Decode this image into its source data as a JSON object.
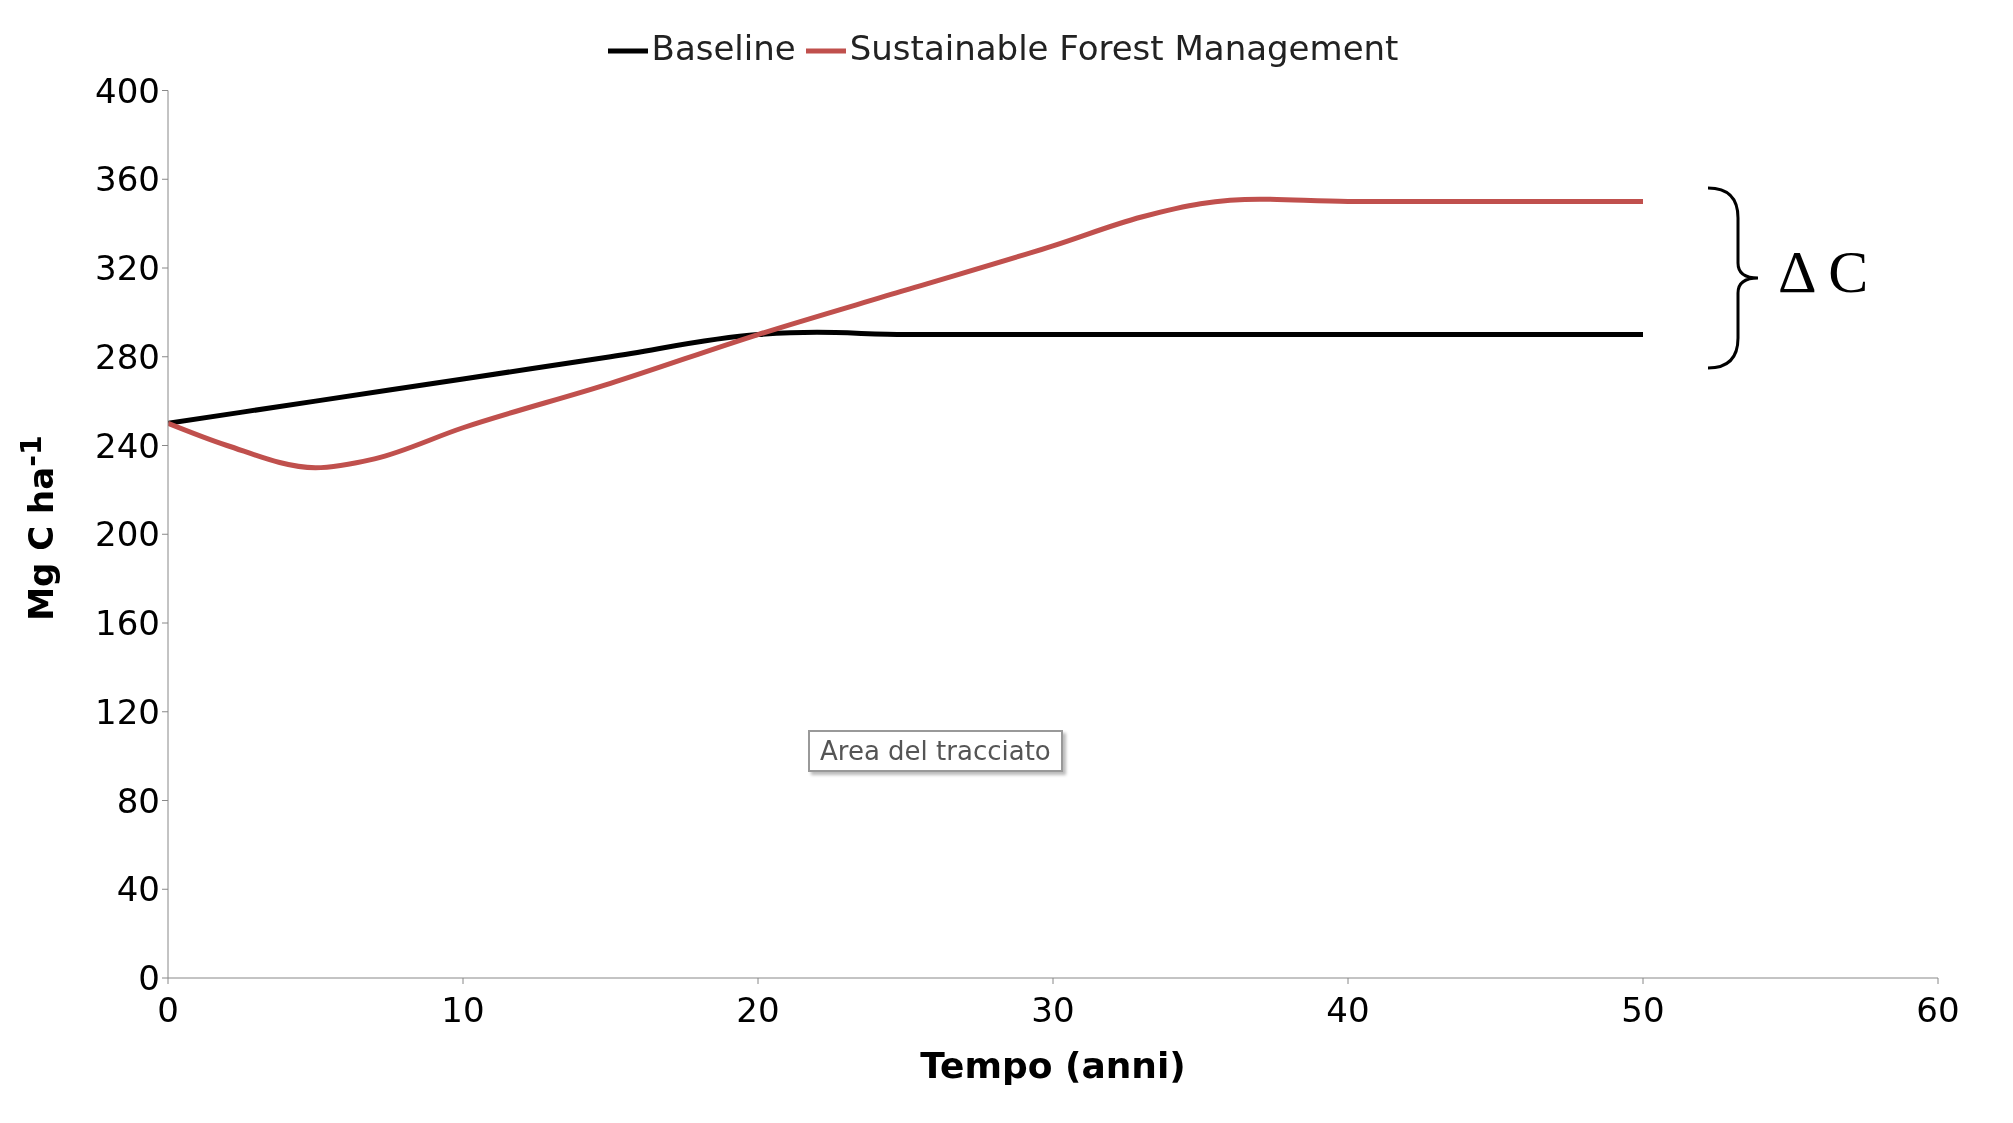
{
  "chart_data": {
    "type": "line",
    "xlabel": "Tempo (anni)",
    "ylabel": "Mg C ha$^{-1}$",
    "series": [
      {
        "name": "Baseline",
        "color": "#000000",
        "x": [
          0,
          5,
          10,
          15,
          20,
          22,
          25,
          30,
          40,
          50
        ],
        "values": [
          250,
          260,
          270,
          280,
          290,
          291,
          290,
          290,
          290,
          290
        ]
      },
      {
        "name": "Sustainable Forest Management",
        "color": "#c0504d",
        "x": [
          0,
          2,
          5,
          7,
          10,
          15,
          20,
          25,
          30,
          33,
          35,
          37,
          40,
          45,
          50
        ],
        "values": [
          250,
          240,
          230,
          234,
          248,
          268,
          290,
          310,
          330,
          343,
          349,
          351,
          350,
          350,
          350
        ]
      }
    ],
    "xlim": [
      0,
      60
    ],
    "xticks": [
      0,
      10,
      20,
      30,
      40,
      50,
      60
    ],
    "ylim": [
      0,
      400
    ],
    "yticks": [
      0,
      40,
      80,
      120,
      160,
      200,
      240,
      280,
      320,
      360,
      400
    ],
    "legend": "top",
    "marker": "none",
    "line_style": "solid",
    "annotations": [
      "Δ C",
      "Area del tracciato"
    ]
  }
}
